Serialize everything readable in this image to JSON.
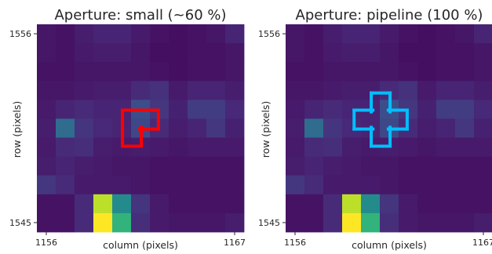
{
  "colors": {
    "viridis_stops": [
      "#440154",
      "#482878",
      "#3e4989",
      "#31688e",
      "#26828e",
      "#1f9e89",
      "#35b779",
      "#6ece58",
      "#b5de2b",
      "#fde725"
    ],
    "small_aperture_outline": "#ff0000",
    "pipeline_aperture_outline": "#00bfff",
    "axis_color": "#262626"
  },
  "chart_data": [
    {
      "type": "heatmap",
      "title": "Aperture: small (~60 %)",
      "xlabel": "column (pixels)",
      "ylabel": "row (pixels)",
      "x_ticks": [
        "1156",
        "1167"
      ],
      "y_ticks": [
        "1556",
        "1545"
      ],
      "xlim": [
        1156,
        1167
      ],
      "ylim": [
        1545,
        1556
      ],
      "value_range": [
        0,
        1
      ],
      "grid": false,
      "aperture": {
        "color_name": "red",
        "pixels": [
          [
            1161,
            1551
          ],
          [
            1162,
            1551
          ],
          [
            1161,
            1550
          ]
        ]
      },
      "rows_top_to_bottom": [
        [
          0.06,
          0.05,
          0.08,
          0.1,
          0.1,
          0.07,
          0.05,
          0.04,
          0.05,
          0.06,
          0.1
        ],
        [
          0.06,
          0.05,
          0.07,
          0.08,
          0.08,
          0.06,
          0.04,
          0.04,
          0.05,
          0.05,
          0.06
        ],
        [
          0.05,
          0.05,
          0.06,
          0.06,
          0.06,
          0.06,
          0.05,
          0.04,
          0.05,
          0.05,
          0.06
        ],
        [
          0.06,
          0.06,
          0.07,
          0.08,
          0.08,
          0.12,
          0.14,
          0.07,
          0.1,
          0.1,
          0.08
        ],
        [
          0.07,
          0.1,
          0.12,
          0.1,
          0.1,
          0.24,
          0.16,
          0.09,
          0.18,
          0.18,
          0.11
        ],
        [
          0.08,
          0.35,
          0.15,
          0.11,
          0.1,
          0.22,
          0.12,
          0.08,
          0.1,
          0.16,
          0.09
        ],
        [
          0.07,
          0.12,
          0.13,
          0.08,
          0.07,
          0.08,
          0.07,
          0.06,
          0.07,
          0.07,
          0.07
        ],
        [
          0.08,
          0.1,
          0.08,
          0.07,
          0.06,
          0.06,
          0.05,
          0.05,
          0.05,
          0.05,
          0.05
        ],
        [
          0.16,
          0.12,
          0.07,
          0.07,
          0.07,
          0.06,
          0.05,
          0.05,
          0.05,
          0.05,
          0.05
        ],
        [
          0.05,
          0.05,
          0.12,
          0.9,
          0.48,
          0.15,
          0.07,
          0.05,
          0.05,
          0.05,
          0.05
        ],
        [
          0.05,
          0.05,
          0.12,
          1.0,
          0.65,
          0.13,
          0.07,
          0.06,
          0.06,
          0.06,
          0.08
        ]
      ]
    },
    {
      "type": "heatmap",
      "title": "Aperture: pipeline (100 %)",
      "xlabel": "column (pixels)",
      "ylabel": "row (pixels)",
      "x_ticks": [
        "1156",
        "1167"
      ],
      "y_ticks": [
        "1556",
        "1545"
      ],
      "xlim": [
        1156,
        1167
      ],
      "ylim": [
        1545,
        1556
      ],
      "value_range": [
        0,
        1
      ],
      "grid": false,
      "aperture": {
        "color_name": "deepskyblue",
        "pixels": [
          [
            1161,
            1552
          ],
          [
            1160,
            1551
          ],
          [
            1161,
            1551
          ],
          [
            1162,
            1551
          ],
          [
            1161,
            1550
          ]
        ]
      },
      "rows_top_to_bottom": [
        [
          0.06,
          0.05,
          0.08,
          0.1,
          0.1,
          0.07,
          0.05,
          0.04,
          0.05,
          0.06,
          0.1
        ],
        [
          0.06,
          0.05,
          0.07,
          0.08,
          0.08,
          0.06,
          0.04,
          0.04,
          0.05,
          0.05,
          0.06
        ],
        [
          0.05,
          0.05,
          0.06,
          0.06,
          0.06,
          0.06,
          0.05,
          0.04,
          0.05,
          0.05,
          0.06
        ],
        [
          0.06,
          0.06,
          0.07,
          0.08,
          0.08,
          0.12,
          0.14,
          0.07,
          0.1,
          0.1,
          0.08
        ],
        [
          0.07,
          0.1,
          0.12,
          0.1,
          0.1,
          0.24,
          0.16,
          0.09,
          0.18,
          0.18,
          0.11
        ],
        [
          0.08,
          0.35,
          0.15,
          0.11,
          0.1,
          0.22,
          0.12,
          0.08,
          0.1,
          0.16,
          0.09
        ],
        [
          0.07,
          0.12,
          0.13,
          0.08,
          0.07,
          0.08,
          0.07,
          0.06,
          0.07,
          0.07,
          0.07
        ],
        [
          0.08,
          0.1,
          0.08,
          0.07,
          0.06,
          0.06,
          0.05,
          0.05,
          0.05,
          0.05,
          0.05
        ],
        [
          0.16,
          0.12,
          0.07,
          0.07,
          0.07,
          0.06,
          0.05,
          0.05,
          0.05,
          0.05,
          0.05
        ],
        [
          0.05,
          0.05,
          0.12,
          0.9,
          0.48,
          0.15,
          0.07,
          0.05,
          0.05,
          0.05,
          0.05
        ],
        [
          0.05,
          0.05,
          0.12,
          1.0,
          0.65,
          0.13,
          0.07,
          0.06,
          0.06,
          0.06,
          0.08
        ]
      ]
    }
  ]
}
